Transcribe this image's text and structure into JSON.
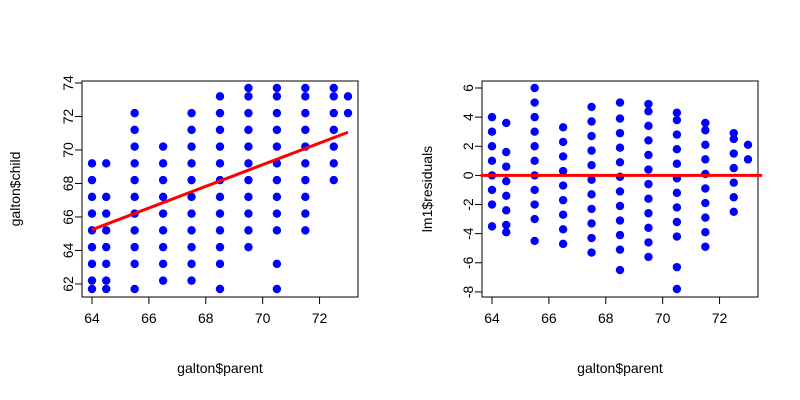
{
  "colors": {
    "points": "#0000ff",
    "fit_line": "#ff0000",
    "axes": "#000000",
    "background": "#ffffff"
  },
  "chart_data": [
    {
      "type": "scatter",
      "title": "",
      "xlabel": "galton$parent",
      "ylabel": "galton$child",
      "xlim": [
        64,
        73
      ],
      "ylim": [
        61.7,
        73.7
      ],
      "x_ticks": [
        64,
        66,
        68,
        70,
        72
      ],
      "y_ticks": [
        62,
        64,
        66,
        68,
        70,
        72,
        74
      ],
      "grid": false,
      "legend": "none",
      "columns": [
        {
          "x": 64.0,
          "y": [
            61.7,
            62.2,
            63.2,
            64.2,
            65.2,
            66.2,
            67.2,
            68.2,
            69.2
          ]
        },
        {
          "x": 64.5,
          "y": [
            61.7,
            62.2,
            63.2,
            64.2,
            65.2,
            66.2,
            67.2,
            69.2
          ]
        },
        {
          "x": 65.5,
          "y": [
            61.7,
            63.2,
            64.2,
            65.2,
            66.2,
            67.2,
            68.2,
            69.2,
            70.2,
            71.2,
            72.2
          ]
        },
        {
          "x": 66.5,
          "y": [
            62.2,
            63.2,
            64.2,
            65.2,
            66.2,
            67.2,
            68.2,
            69.2,
            70.2
          ]
        },
        {
          "x": 67.5,
          "y": [
            62.2,
            63.2,
            64.2,
            65.2,
            66.2,
            67.2,
            68.2,
            69.2,
            70.2,
            71.2,
            72.2
          ]
        },
        {
          "x": 68.5,
          "y": [
            61.7,
            63.2,
            64.2,
            65.2,
            66.2,
            67.2,
            68.2,
            69.2,
            70.2,
            71.2,
            72.2,
            73.2
          ]
        },
        {
          "x": 69.5,
          "y": [
            64.2,
            65.2,
            66.2,
            67.2,
            68.2,
            69.2,
            70.2,
            71.2,
            72.2,
            73.2,
            73.7
          ]
        },
        {
          "x": 70.5,
          "y": [
            61.7,
            63.2,
            65.2,
            66.2,
            67.2,
            68.2,
            69.2,
            70.2,
            71.2,
            72.2,
            73.2,
            73.7
          ]
        },
        {
          "x": 71.5,
          "y": [
            65.2,
            66.2,
            67.2,
            68.2,
            69.2,
            70.2,
            71.2,
            72.2,
            73.2,
            73.7
          ]
        },
        {
          "x": 72.5,
          "y": [
            68.2,
            69.2,
            70.2,
            71.2,
            72.2,
            73.2,
            73.7
          ]
        },
        {
          "x": 73.0,
          "y": [
            72.2,
            73.2
          ]
        }
      ],
      "fit_line": {
        "x": [
          64,
          73
        ],
        "y": [
          65.24,
          71.06
        ]
      }
    },
    {
      "type": "scatter",
      "title": "",
      "xlabel": "galton$parent",
      "ylabel": "lm1$residuals",
      "xlim": [
        64,
        73
      ],
      "ylim": [
        -7.8,
        6.0
      ],
      "x_ticks": [
        64,
        66,
        68,
        70,
        72
      ],
      "y_ticks": [
        -8,
        -6,
        -4,
        -2,
        0,
        2,
        4,
        6
      ],
      "grid": false,
      "legend": "none",
      "columns": [
        {
          "x": 64.0,
          "y": [
            -3.5,
            -2.0,
            -1.0,
            0.0,
            1.0,
            2.0,
            3.0,
            4.0
          ]
        },
        {
          "x": 64.5,
          "y": [
            -3.9,
            -3.4,
            -2.4,
            -1.4,
            -0.4,
            0.6,
            1.6,
            3.6
          ]
        },
        {
          "x": 65.5,
          "y": [
            -4.5,
            -3.0,
            -2.0,
            -1.0,
            0.0,
            1.0,
            2.0,
            3.0,
            4.0,
            5.0,
            6.0
          ]
        },
        {
          "x": 66.5,
          "y": [
            -4.7,
            -3.7,
            -2.7,
            -1.7,
            -0.7,
            0.3,
            1.3,
            2.3,
            3.3
          ]
        },
        {
          "x": 67.5,
          "y": [
            -5.3,
            -4.3,
            -3.3,
            -2.3,
            -1.3,
            -0.3,
            0.7,
            1.7,
            2.7,
            3.7,
            4.7
          ]
        },
        {
          "x": 68.5,
          "y": [
            -6.5,
            -5.1,
            -4.1,
            -3.1,
            -2.1,
            -1.1,
            -0.1,
            0.9,
            1.9,
            2.9,
            3.9,
            5.0
          ]
        },
        {
          "x": 69.5,
          "y": [
            -5.6,
            -4.6,
            -3.6,
            -2.6,
            -1.6,
            -0.6,
            0.4,
            1.4,
            2.4,
            3.4,
            4.4,
            4.9
          ]
        },
        {
          "x": 70.5,
          "y": [
            -7.8,
            -6.3,
            -4.2,
            -3.2,
            -2.2,
            -1.2,
            -0.2,
            0.8,
            1.8,
            2.8,
            3.8,
            4.3
          ]
        },
        {
          "x": 71.5,
          "y": [
            -4.9,
            -3.9,
            -2.9,
            -1.9,
            -0.9,
            0.1,
            1.1,
            2.1,
            3.1,
            3.6
          ]
        },
        {
          "x": 72.5,
          "y": [
            -2.5,
            -1.5,
            -0.5,
            0.5,
            1.5,
            2.5,
            2.9
          ]
        },
        {
          "x": 73.0,
          "y": [
            1.1,
            2.1
          ]
        }
      ],
      "fit_line": {
        "x": [
          63.6,
          73.5
        ],
        "y": [
          0,
          0
        ]
      }
    }
  ]
}
